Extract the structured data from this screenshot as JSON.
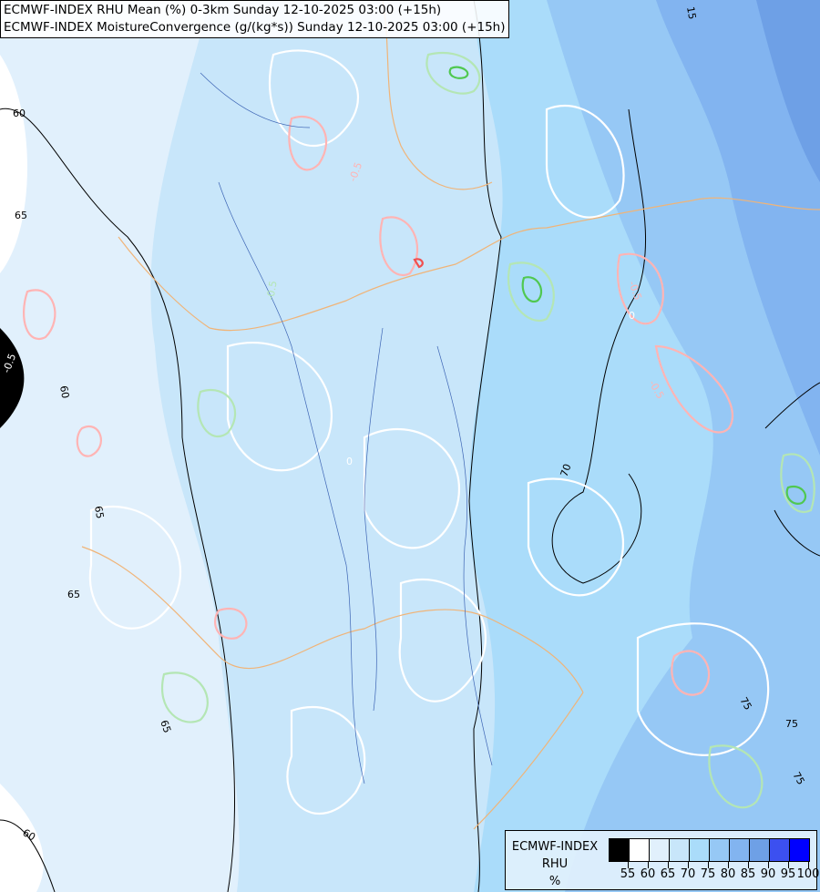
{
  "titles": {
    "line1": "ECMWF-INDEX RHU Mean (%) 0-3km Sunday 12-10-2025 03:00 (+15h)",
    "line2": "ECMWF-INDEX MoistureConvergence (g/(kg*s)) Sunday 12-10-2025 03:00 (+15h)"
  },
  "legend": {
    "title_line1": "ECMWF-INDEX",
    "title_line2": "RHU",
    "unit": "%",
    "colors": [
      "#000000",
      "#ffffff",
      "#e1f0fc",
      "#c8e6fa",
      "#aadcfa",
      "#96c8f5",
      "#82b4f0",
      "#6ea0e6",
      "#3c50f0",
      "#0000ff"
    ],
    "ticks": [
      "55",
      "60",
      "65",
      "70",
      "75",
      "80",
      "85",
      "90",
      "95",
      "100"
    ]
  },
  "contour_labels": {
    "l60a": "60",
    "l65a": "65",
    "l60b": "60",
    "l65b": "65",
    "l65c": "65",
    "l65d": "65",
    "l60c": "60",
    "l70": "70",
    "l75a": "75",
    "l75b": "75",
    "l75c": "75",
    "l15": "15",
    "m05a": "-0.5",
    "m05b": "-0.5",
    "m05c": "-0.5",
    "m05d": "-0.5",
    "m05e": "-0.5",
    "z0a": "0",
    "z0b": "0"
  },
  "colors": {
    "rhu_contour": "#000000",
    "convergence_zero": "#ffffff",
    "convergence_negative": "#ffb4b4",
    "convergence_positive": "#b4e6b4",
    "borders": "#f0b478",
    "rivers": "#3c64b4"
  }
}
